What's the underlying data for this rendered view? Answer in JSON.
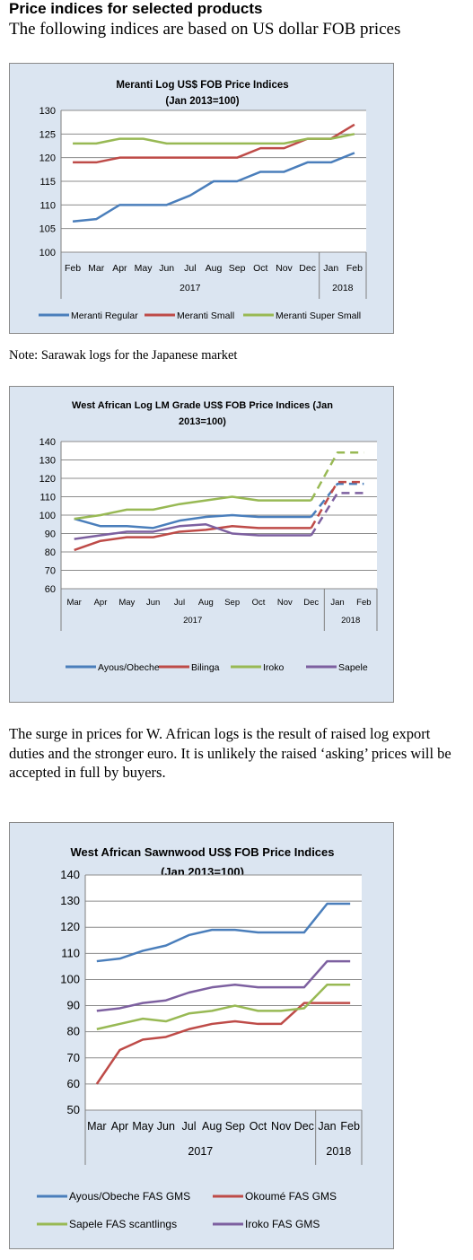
{
  "page": {
    "heading": "Price indices for selected products",
    "subheading": "The following indices are based on US dollar FOB prices",
    "note": "Note: Sarawak logs for the Japanese market",
    "paragraph": "The surge in prices for W. African logs is the result of raised log export duties and the stronger euro. It is unlikely the raised ‘asking’ prices will be accepted in full by buyers."
  },
  "chart_data": [
    {
      "type": "line",
      "title": "Meranti Log US$ FOB Price Indices",
      "subtitle": "(Jan 2013=100)",
      "categories": [
        "Feb",
        "Mar",
        "Apr",
        "May",
        "Jun",
        "Jul",
        "Aug",
        "Sep",
        "Oct",
        "Nov",
        "Dec",
        "Jan",
        "Feb"
      ],
      "year_groups": [
        {
          "label": "2017",
          "span": 11
        },
        {
          "label": "2018",
          "span": 2
        }
      ],
      "ylim": [
        100,
        130
      ],
      "yticks": [
        100,
        105,
        110,
        115,
        120,
        125,
        130
      ],
      "grid": true,
      "legend": "bottom",
      "series": [
        {
          "name": "Meranti Regular",
          "color": "#4a7ebb",
          "values": [
            106.5,
            107,
            110,
            110,
            110,
            112,
            115,
            115,
            117,
            117,
            119,
            119,
            121
          ]
        },
        {
          "name": "Meranti Small",
          "color": "#be4b48",
          "values": [
            119,
            119,
            120,
            120,
            120,
            120,
            120,
            120,
            122,
            122,
            124,
            124,
            127
          ]
        },
        {
          "name": "Meranti Super Small",
          "color": "#98b954",
          "values": [
            123,
            123,
            124,
            124,
            123,
            123,
            123,
            123,
            123,
            123,
            124,
            124,
            125
          ]
        }
      ]
    },
    {
      "type": "line",
      "title": "West African Log LM Grade US$ FOB Price Indices (Jan",
      "subtitle": "2013=100)",
      "categories": [
        "Mar",
        "Apr",
        "May",
        "Jun",
        "Jul",
        "Aug",
        "Sep",
        "Oct",
        "Nov",
        "Dec",
        "Jan",
        "Feb"
      ],
      "year_groups": [
        {
          "label": "2017",
          "span": 10
        },
        {
          "label": "2018",
          "span": 2
        }
      ],
      "ylim": [
        60,
        140
      ],
      "yticks": [
        60,
        70,
        80,
        90,
        100,
        110,
        120,
        130,
        140
      ],
      "grid": true,
      "legend": "bottom",
      "dashed_from_index": 9,
      "series": [
        {
          "name": "Ayous/Obeche",
          "color": "#4a7ebb",
          "values": [
            98,
            94,
            94,
            93,
            97,
            99,
            100,
            99,
            99,
            99,
            117,
            117
          ]
        },
        {
          "name": "Bilinga",
          "color": "#be4b48",
          "values": [
            81,
            86,
            88,
            88,
            91,
            92,
            94,
            93,
            93,
            93,
            118,
            118
          ]
        },
        {
          "name": "Iroko",
          "color": "#98b954",
          "values": [
            98,
            100,
            103,
            103,
            106,
            108,
            110,
            108,
            108,
            108,
            134,
            134
          ]
        },
        {
          "name": "Sapele",
          "color": "#7d60a0",
          "values": [
            87,
            89,
            91,
            91,
            94,
            95,
            90,
            89,
            89,
            89,
            112,
            112
          ]
        }
      ]
    },
    {
      "type": "line",
      "title": "West African Sawnwood US$ FOB Price Indices",
      "subtitle": "(Jan 2013=100)",
      "categories": [
        "Mar",
        "Apr",
        "May",
        "Jun",
        "Jul",
        "Aug",
        "Sep",
        "Oct",
        "Nov",
        "Dec",
        "Jan",
        "Feb"
      ],
      "year_groups": [
        {
          "label": "2017",
          "span": 10
        },
        {
          "label": "2018",
          "span": 2
        }
      ],
      "ylim": [
        50,
        140
      ],
      "yticks": [
        50,
        60,
        70,
        80,
        90,
        100,
        110,
        120,
        130,
        140
      ],
      "grid": true,
      "legend": "bottom",
      "series": [
        {
          "name": "Ayous/Obeche  FAS GMS",
          "color": "#4a7ebb",
          "values": [
            107,
            108,
            111,
            113,
            117,
            119,
            119,
            118,
            118,
            118,
            129,
            129
          ]
        },
        {
          "name": "Okoumé  FAS GMS",
          "color": "#be4b48",
          "values": [
            60,
            73,
            77,
            78,
            81,
            83,
            84,
            83,
            83,
            91,
            91,
            91
          ]
        },
        {
          "name": "Sapele FAS scantlings",
          "color": "#98b954",
          "values": [
            81,
            83,
            85,
            84,
            87,
            88,
            90,
            88,
            88,
            89,
            98,
            98
          ]
        },
        {
          "name": "Iroko FAS GMS",
          "color": "#7d60a0",
          "values": [
            88,
            89,
            91,
            92,
            95,
            97,
            98,
            97,
            97,
            97,
            107,
            107
          ]
        }
      ]
    }
  ]
}
